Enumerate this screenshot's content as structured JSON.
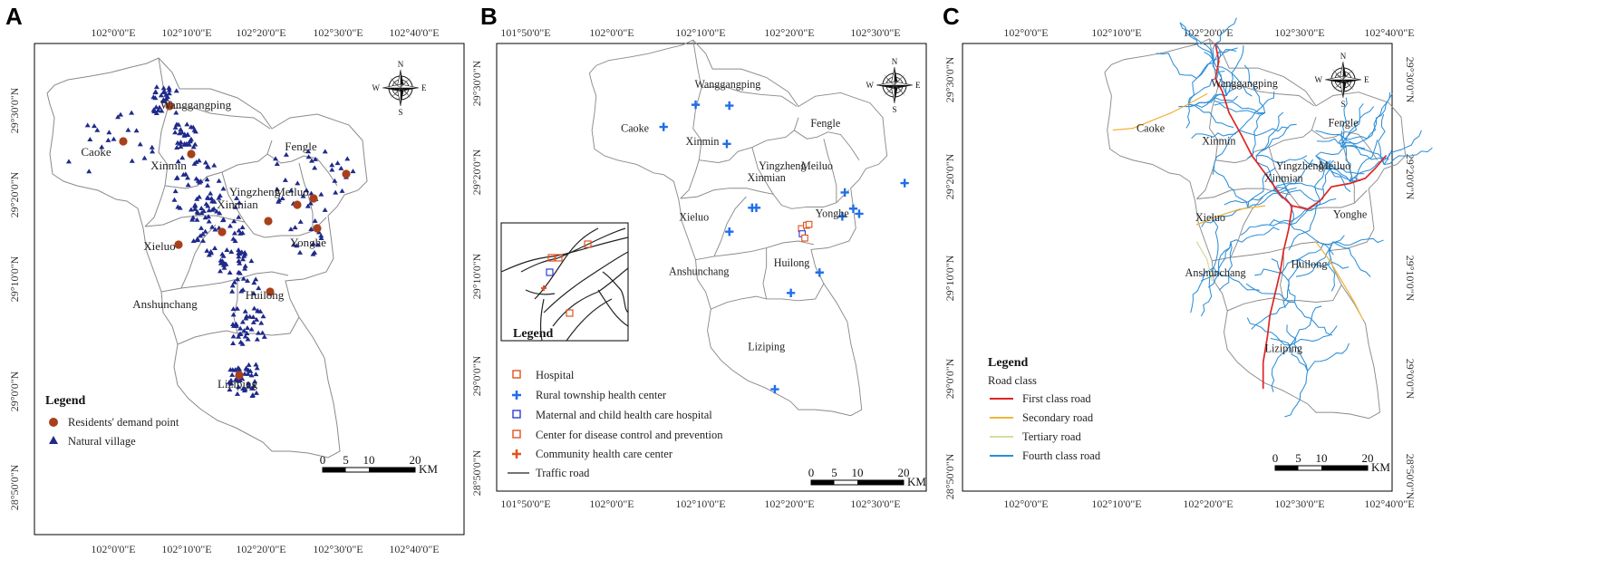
{
  "panels": [
    {
      "letter": "A",
      "x_ticks": [
        "102°0'0\"E",
        "102°10'0\"E",
        "102°20'0\"E",
        "102°30'0\"E",
        "102°40'0\"E"
      ],
      "y_ticks": [
        "29°30'0\"N",
        "29°20'0\"N",
        "29°10'0\"N",
        "29°0'0\"N",
        "28°50'0\"N"
      ],
      "towns": [
        "Wanggangping",
        "Caoke",
        "Xinmin",
        "Fengle",
        "Yingzheng",
        "Meiluo",
        "Xinmian",
        "Xieluo",
        "Yonghe",
        "Anshunchang",
        "Huilong",
        "Liziping"
      ],
      "legend": {
        "title": "Legend",
        "items": [
          "Residents' demand point",
          "Natural village"
        ]
      },
      "scalebar": {
        "labels": [
          "0",
          "5",
          "10",
          "20"
        ],
        "unit": "KM"
      },
      "compass": {
        "n": "N",
        "s": "S",
        "e": "E",
        "w": "W"
      }
    },
    {
      "letter": "B",
      "x_ticks": [
        "101°50'0\"E",
        "102°0'0\"E",
        "102°10'0\"E",
        "102°20'0\"E",
        "102°30'0\"E"
      ],
      "y_ticks": [
        "29°30'0\"N",
        "29°20'0\"N",
        "29°10'0\"N",
        "29°0'0\"N",
        "28°50'0\"N"
      ],
      "towns": [
        "Wanggangping",
        "Caoke",
        "Xinmin",
        "Fengle",
        "Yingzheng",
        "Meiluo",
        "Xinmian",
        "Xieluo",
        "Yonghe",
        "Anshunchang",
        "Huilong",
        "Liziping"
      ],
      "legend": {
        "title": "Legend",
        "items": [
          "Hospital",
          "Rural township health center",
          "Maternal and child health care hospital",
          "Center for disease control and prevention",
          "Community health care center",
          "Traffic road"
        ]
      },
      "scalebar": {
        "labels": [
          "0",
          "5",
          "10",
          "20"
        ],
        "unit": "KM"
      },
      "compass": {
        "n": "N",
        "s": "S",
        "e": "E",
        "w": "W"
      }
    },
    {
      "letter": "C",
      "x_ticks": [
        "102°0'0\"E",
        "102°10'0\"E",
        "102°20'0\"E",
        "102°30'0\"E",
        "102°40'0\"E"
      ],
      "y_ticks": [
        "29°30'0\"N",
        "29°20'0\"N",
        "29°10'0\"N",
        "29°0'0\"N",
        "28°50'0\"N"
      ],
      "towns": [
        "Wanggangping",
        "Caoke",
        "Xinmin",
        "Fengle",
        "Yingzheng",
        "Meiluo",
        "Xinmian",
        "Xieluo",
        "Yonghe",
        "Anshunchang",
        "Huilong",
        "Liziping"
      ],
      "legend": {
        "title": "Legend",
        "subtitle": "Road class",
        "items": [
          "First class road",
          "Secondary road",
          "Tertiary road",
          "Fourth class road"
        ]
      },
      "scalebar": {
        "labels": [
          "0",
          "5",
          "10",
          "20"
        ],
        "unit": "KM"
      },
      "compass": {
        "n": "N",
        "s": "S",
        "e": "E",
        "w": "W"
      }
    }
  ],
  "colors": {
    "demand_point": "#a8401c",
    "village": "#1f2a8a",
    "hospital": "#e0531e",
    "health_center": "#1f6fe8",
    "maternal": "#2b3fd6",
    "cdc": "#e0531e",
    "community": "#e0531e",
    "road_first": "#e02424",
    "road_secondary": "#f0b43c",
    "road_tertiary": "#d7dc9c",
    "road_fourth": "#2a8ed8",
    "boundary": "#8a8a8a"
  }
}
